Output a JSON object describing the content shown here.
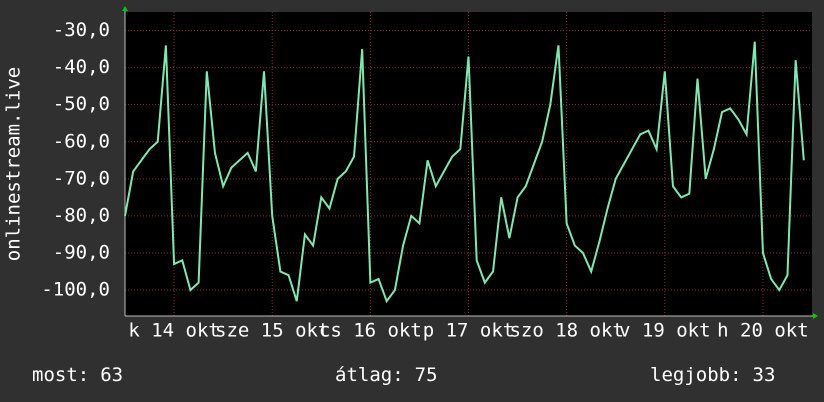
{
  "chart_data": {
    "type": "line",
    "y_label": "onlinestream.live",
    "xlim": [
      0,
      168
    ],
    "ylim": [
      -107,
      -25
    ],
    "yticks": [
      {
        "value": -30,
        "label": "-30,0"
      },
      {
        "value": -40,
        "label": "-40,0"
      },
      {
        "value": -50,
        "label": "-50,0"
      },
      {
        "value": -60,
        "label": "-60,0"
      },
      {
        "value": -70,
        "label": "-70,0"
      },
      {
        "value": -80,
        "label": "-80,0"
      },
      {
        "value": -90,
        "label": "-90,0"
      },
      {
        "value": -100,
        "label": "-100,0"
      }
    ],
    "xticks": [
      {
        "value": 12,
        "label": "k 14 okt"
      },
      {
        "value": 36,
        "label": "sze 15 okt"
      },
      {
        "value": 60,
        "label": "cs 16 okt"
      },
      {
        "value": 84,
        "label": "p 17 okt"
      },
      {
        "value": 108,
        "label": "szo 18 okt"
      },
      {
        "value": 132,
        "label": "v 19 okt"
      },
      {
        "value": 156,
        "label": "h 20 okt"
      }
    ],
    "grid": true,
    "x": [
      0,
      2,
      4,
      6,
      8,
      10,
      12,
      14,
      16,
      18,
      20,
      22,
      24,
      26,
      28,
      30,
      32,
      34,
      36,
      38,
      40,
      42,
      44,
      46,
      48,
      50,
      52,
      54,
      56,
      58,
      60,
      62,
      64,
      66,
      68,
      70,
      72,
      74,
      76,
      78,
      80,
      82,
      84,
      86,
      88,
      90,
      92,
      94,
      96,
      98,
      100,
      102,
      104,
      106,
      108,
      110,
      112,
      114,
      116,
      118,
      120,
      122,
      124,
      126,
      128,
      130,
      132,
      134,
      136,
      138,
      140,
      142,
      144,
      146,
      148,
      150,
      152,
      154,
      156,
      158,
      160,
      162,
      164,
      166
    ],
    "series": [
      {
        "color": "#7fe8b0",
        "values": [
          -80,
          -68,
          -65,
          -62,
          -60,
          -34,
          -93,
          -92,
          -100,
          -98,
          -41,
          -63,
          -72,
          -67,
          -65,
          -63,
          -68,
          -41,
          -80,
          -95,
          -96,
          -103,
          -85,
          -88,
          -75,
          -78,
          -70,
          -68,
          -64,
          -35,
          -98,
          -97,
          -103,
          -100,
          -88,
          -80,
          -82,
          -65,
          -72,
          -68,
          -64,
          -62,
          -37,
          -92,
          -98,
          -95,
          -75,
          -86,
          -75,
          -72,
          -66,
          -60,
          -50,
          -34,
          -82,
          -88,
          -90,
          -95,
          -87,
          -78,
          -70,
          -66,
          -62,
          -58,
          -57,
          -62,
          -41,
          -72,
          -75,
          -74,
          -43,
          -70,
          -62,
          -52,
          -51,
          -54,
          -58,
          -33,
          -90,
          -97,
          -100,
          -96,
          -38,
          -65
        ]
      }
    ],
    "footer": [
      {
        "label": "most:",
        "value": 63
      },
      {
        "label": "átlag:",
        "value": 75
      },
      {
        "label": "legjobb:",
        "value": 33
      }
    ]
  }
}
